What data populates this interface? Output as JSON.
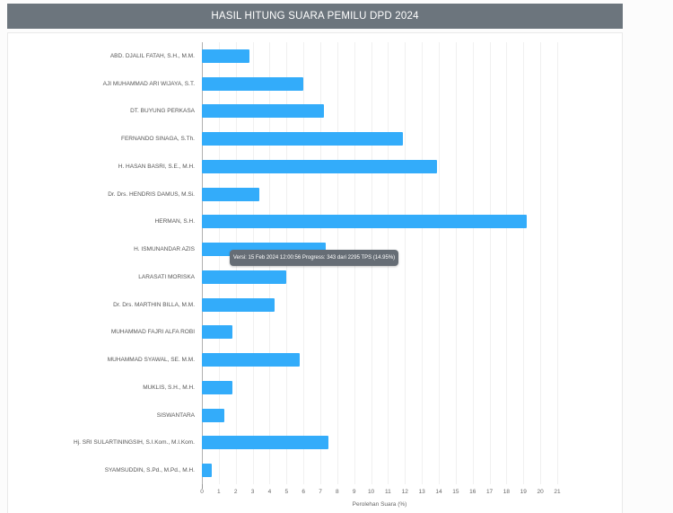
{
  "header": {
    "title": "HASIL HITUNG SUARA PEMILU DPD 2024"
  },
  "tooltip": {
    "text": "Versi: 15 Feb 2024 12:00:56 Progress: 343 dari 2295 TPS (14.95%)"
  },
  "colors": {
    "header_bg": "#6c757d",
    "bar": "#33acfa",
    "grid": "#f0f0f0",
    "zero_line": "#b0b0b0",
    "tooltip_bg": "#666d75"
  },
  "chart_data": {
    "type": "bar",
    "orientation": "horizontal",
    "title": "HASIL HITUNG SUARA PEMILU DPD 2024",
    "xlabel": "Perolehan Suara (%)",
    "xlim": [
      0,
      21
    ],
    "xticks": [
      0,
      1,
      2,
      3,
      4,
      5,
      6,
      7,
      8,
      9,
      10,
      11,
      12,
      13,
      14,
      15,
      16,
      17,
      18,
      19,
      20,
      21
    ],
    "grid": true,
    "legend": false,
    "categories": [
      "ABD. DJALIL FATAH, S.H., M.M.",
      "AJI MUHAMMAD ARI WIJAYA, S.T.",
      "DT. BUYUNG PERKASA",
      "FERNANDO SINAGA, S.Th.",
      "H. HASAN BASRI, S.E., M.H.",
      "Dr. Drs. HENDRIS DAMUS, M.Si.",
      "HERMAN, S.H.",
      "H. ISMUNANDAR AZIS",
      "LARASATI MORISKA",
      "Dr. Drs. MARTHIN BILLA, M.M.",
      "MUHAMMAD FAJRI ALFA ROBI",
      "MUHAMMAD SYAWAL, SE. M.M.",
      "MUKLIS, S.H., M.H.",
      "SISWANTARA",
      "Hj. SRI SULARTININGSIH, S.I.Kom., M.I.Kom.",
      "SYAMSUDDIN, S.Pd., M.Pd., M.H."
    ],
    "values": [
      2.8,
      6.0,
      7.2,
      11.9,
      13.9,
      3.4,
      19.2,
      7.3,
      5.0,
      4.3,
      1.8,
      5.8,
      1.8,
      1.3,
      7.5,
      0.6
    ]
  }
}
